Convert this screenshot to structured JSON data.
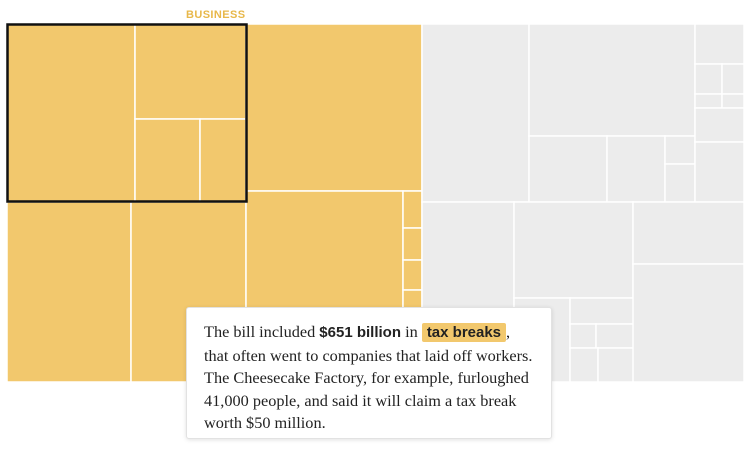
{
  "chart_data": {
    "type": "treemap",
    "title": "",
    "highlight_label": "BUSINESS",
    "colors": {
      "highlight": "#f2c86d",
      "other": "#ececec",
      "divider": "#ffffff",
      "focus_outline": "#111111"
    }
  },
  "callout": {
    "text_1": "The bill included ",
    "amount": "$651 billion",
    "text_2": " in ",
    "tag": "tax breaks",
    "text_3": ", that often went to companies that laid off workers. The Cheesecake Factory, for example, furloughed 41,000 people, and said it will claim a tax break worth $50 million."
  }
}
